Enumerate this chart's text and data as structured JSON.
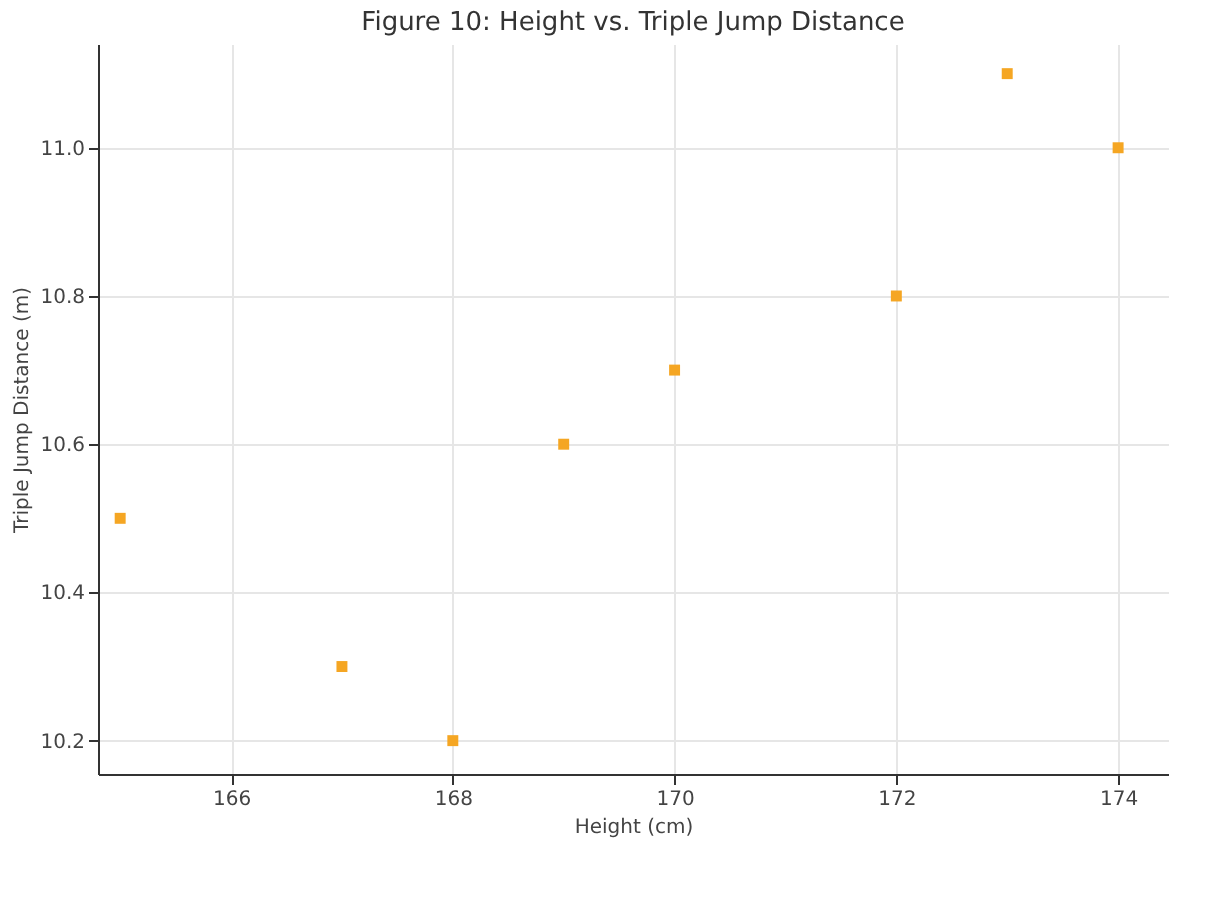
{
  "chart_data": {
    "type": "scatter",
    "title": "Figure 10: Height vs. Triple Jump Distance",
    "xlabel": "Height (cm)",
    "ylabel": "Triple Jump Distance (m)",
    "x": [
      165,
      167,
      168,
      169,
      170,
      172,
      173,
      174
    ],
    "series": [
      {
        "color": "#f5a623",
        "values": [
          10.5,
          10.3,
          10.2,
          10.6,
          10.7,
          10.8,
          11.1,
          11.0
        ]
      }
    ],
    "xlim": [
      164.8,
      174.45
    ],
    "xticks": [
      166,
      168,
      170,
      172,
      174
    ],
    "ylim": [
      10.155,
      11.14
    ],
    "yticks": [
      10.2,
      10.4,
      10.6,
      10.8,
      {
        "value": 11,
        "label": "11.0"
      }
    ],
    "grid": true,
    "marker": "square"
  }
}
